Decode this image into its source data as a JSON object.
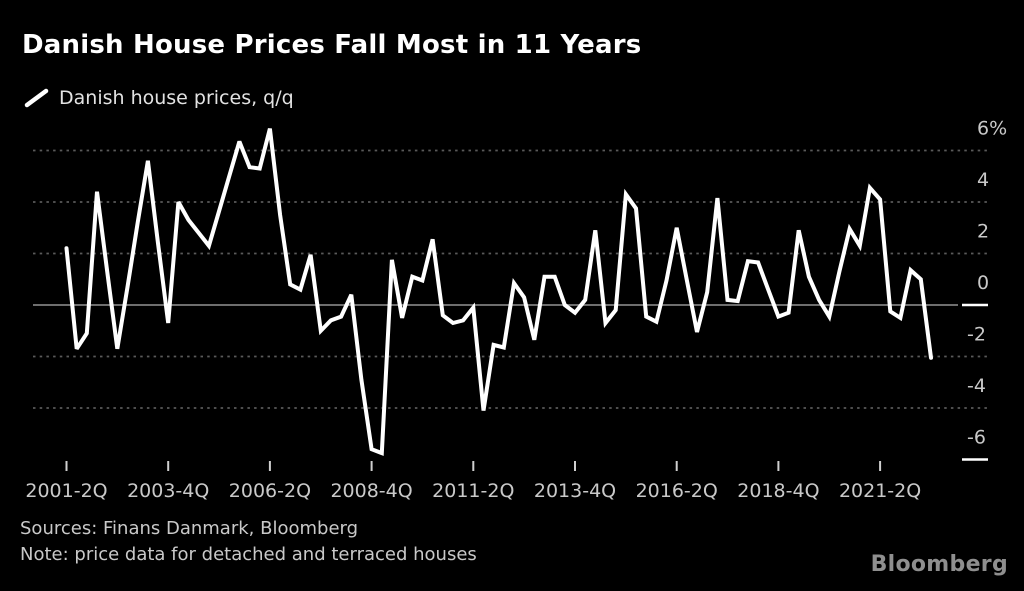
{
  "header": {
    "title": "Danish House Prices Fall Most in 11 Years"
  },
  "legend": {
    "label": "Danish house prices, q/q",
    "marker": "line-swatch",
    "marker_color": "#ffffff"
  },
  "chart_data": {
    "type": "line",
    "title": "Danish House Prices Fall Most in 11 Years",
    "series_label": "Danish house prices, q/q",
    "unit": "%",
    "x": [
      "2001-2Q",
      "2001-3Q",
      "2001-4Q",
      "2002-1Q",
      "2002-2Q",
      "2002-3Q",
      "2002-4Q",
      "2003-1Q",
      "2003-2Q",
      "2003-3Q",
      "2003-4Q",
      "2004-1Q",
      "2004-2Q",
      "2004-3Q",
      "2004-4Q",
      "2005-1Q",
      "2005-2Q",
      "2005-3Q",
      "2005-4Q",
      "2006-1Q",
      "2006-2Q",
      "2006-3Q",
      "2006-4Q",
      "2007-1Q",
      "2007-2Q",
      "2007-3Q",
      "2007-4Q",
      "2008-1Q",
      "2008-2Q",
      "2008-3Q",
      "2008-4Q",
      "2009-1Q",
      "2009-2Q",
      "2009-3Q",
      "2009-4Q",
      "2010-1Q",
      "2010-2Q",
      "2010-3Q",
      "2010-4Q",
      "2011-1Q",
      "2011-2Q",
      "2011-3Q",
      "2011-4Q",
      "2012-1Q",
      "2012-2Q",
      "2012-3Q",
      "2012-4Q",
      "2013-1Q",
      "2013-2Q",
      "2013-3Q",
      "2013-4Q",
      "2014-1Q",
      "2014-2Q",
      "2014-3Q",
      "2014-4Q",
      "2015-1Q",
      "2015-2Q",
      "2015-3Q",
      "2015-4Q",
      "2016-1Q",
      "2016-2Q",
      "2016-3Q",
      "2016-4Q",
      "2017-1Q",
      "2017-2Q",
      "2017-3Q",
      "2017-4Q",
      "2018-1Q",
      "2018-2Q",
      "2018-3Q",
      "2018-4Q",
      "2019-1Q",
      "2019-2Q",
      "2019-3Q",
      "2019-4Q",
      "2020-1Q",
      "2020-2Q",
      "2020-3Q",
      "2020-4Q",
      "2021-1Q",
      "2021-2Q",
      "2021-3Q",
      "2021-4Q",
      "2022-1Q",
      "2022-2Q",
      "2022-3Q"
    ],
    "values": [
      2.2,
      -1.7,
      -1.1,
      4.4,
      1.3,
      -1.7,
      0.7,
      3.2,
      5.6,
      2.4,
      -0.7,
      4.0,
      3.3,
      2.8,
      2.3,
      3.65,
      5.0,
      6.35,
      5.35,
      5.3,
      6.85,
      3.5,
      0.8,
      0.6,
      1.95,
      -1.0,
      -0.6,
      -0.45,
      0.4,
      -2.9,
      -5.6,
      -5.75,
      1.75,
      -0.5,
      1.1,
      0.95,
      2.55,
      -0.4,
      -0.7,
      -0.6,
      -0.1,
      -4.1,
      -1.55,
      -1.65,
      0.85,
      0.3,
      -1.35,
      1.1,
      1.1,
      0.0,
      -0.3,
      0.2,
      2.9,
      -0.7,
      -0.2,
      4.3,
      3.75,
      -0.45,
      -0.65,
      0.95,
      3.0,
      0.95,
      -1.05,
      0.5,
      4.15,
      0.2,
      0.15,
      1.7,
      1.65,
      0.6,
      -0.45,
      -0.3,
      2.9,
      1.1,
      0.2,
      -0.45,
      1.3,
      2.95,
      2.3,
      4.55,
      4.1,
      -0.25,
      -0.5,
      1.35,
      1.0,
      -2.05
    ],
    "y_ticks": [
      6,
      4,
      2,
      0,
      -2,
      -4,
      -6
    ],
    "y_tick_labels": [
      "6%",
      "4",
      "2",
      "0",
      "-2",
      "-4",
      "-6"
    ],
    "ylim": [
      -6.9,
      7.6
    ],
    "x_tick_every": 10,
    "x_tick_labels": [
      "2001-2Q",
      "2003-4Q",
      "2006-2Q",
      "2008-4Q",
      "2011-2Q",
      "2013-4Q",
      "2016-2Q",
      "2018-4Q",
      "2021-2Q"
    ],
    "grid": "dotted horizontal",
    "legend_position": "top-left",
    "line_color": "#ffffff",
    "grid_color": "#5a5a5a",
    "zero_line_color": "#6e6e6e",
    "axis_text_color": "#c9c9c9"
  },
  "footer": {
    "sources": "Sources: Finans Danmark, Bloomberg",
    "note": "Note: price data for detached and terraced houses",
    "logo": "Bloomberg"
  },
  "colors": {
    "background": "#000000",
    "title_text": "#ffffff",
    "legend_text": "#e2e2e2",
    "logo_text": "#8f8f8f"
  }
}
